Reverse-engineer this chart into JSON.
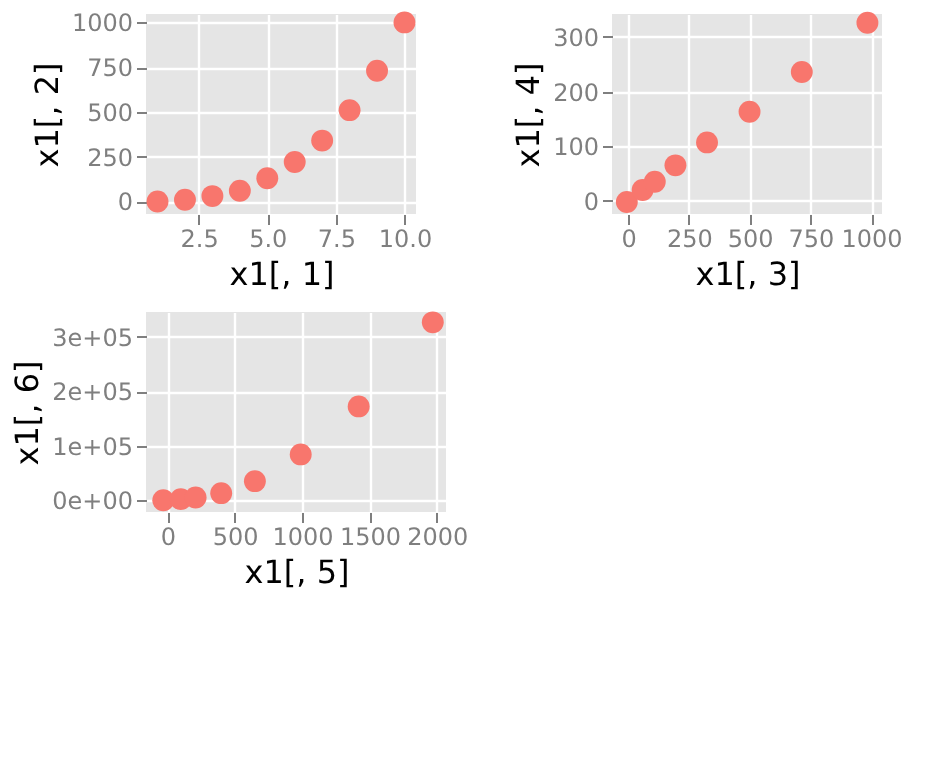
{
  "chart_data": [
    {
      "type": "scatter",
      "xlabel": "x1[, 1]",
      "ylabel": "x1[, 2]",
      "x": [
        1,
        2,
        3,
        4,
        5,
        6,
        7,
        8,
        9,
        10
      ],
      "series": [
        {
          "color": "#f8766d",
          "values": [
            0,
            10,
            30,
            60,
            130,
            220,
            340,
            510,
            730,
            1000
          ]
        }
      ],
      "xlim": [
        0.58,
        10.42
      ],
      "ylim": [
        -70,
        1047
      ],
      "xticks": [
        2.5,
        {
          "value": 5,
          "label": "5.0"
        },
        7.5,
        {
          "value": 10,
          "label": "10.0"
        }
      ],
      "yticks": [
        0,
        250,
        500,
        750,
        1000
      ],
      "grid": true,
      "marker": "circle"
    },
    {
      "type": "scatter",
      "xlabel": "x1[, 3]",
      "ylabel": "x1[, 4]",
      "x": [
        -5,
        60,
        110,
        195,
        325,
        500,
        715,
        985
      ],
      "series": [
        {
          "color": "#f8766d",
          "values": [
            -2,
            20,
            35,
            65,
            107,
            163,
            236,
            326
          ]
        }
      ],
      "xlim": [
        -66,
        1045
      ],
      "ylim": [
        -24,
        342
      ],
      "xticks": [
        0,
        250,
        500,
        750,
        1000
      ],
      "yticks": [
        0,
        100,
        200,
        300
      ],
      "grid": true,
      "marker": "circle"
    },
    {
      "type": "scatter",
      "xlabel": "x1[, 5]",
      "ylabel": "x1[, 6]",
      "x": [
        -30,
        100,
        210,
        400,
        650,
        990,
        1420,
        1970
      ],
      "series": [
        {
          "color": "#f8766d",
          "values": [
            0,
            2000,
            5000,
            13000,
            35000,
            84000,
            172000,
            326000
          ]
        }
      ],
      "xlim": [
        -158,
        2068
      ],
      "ylim": [
        -21550,
        345000
      ],
      "xticks": [
        0,
        500,
        1000,
        1500,
        2000
      ],
      "yticks": [
        {
          "value": 0,
          "label": "0e+00"
        },
        {
          "value": 100000,
          "label": "1e+05"
        },
        {
          "value": 200000,
          "label": "2e+05"
        },
        {
          "value": 300000,
          "label": "3e+05"
        }
      ],
      "grid": true,
      "marker": "circle"
    }
  ]
}
